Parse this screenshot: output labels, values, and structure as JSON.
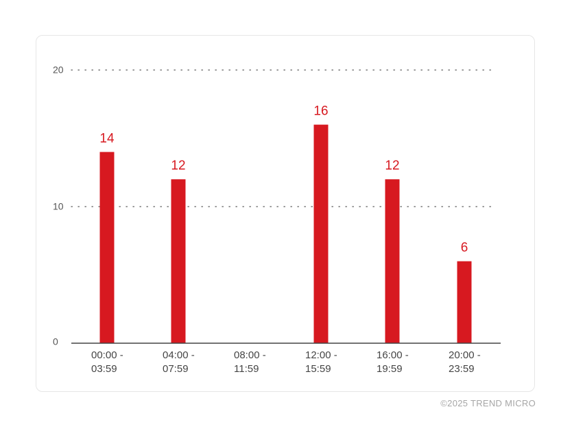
{
  "chart_data": {
    "type": "bar",
    "categories": [
      [
        "00:00 -",
        "03:59"
      ],
      [
        "04:00 -",
        "07:59"
      ],
      [
        "08:00 -",
        "11:59"
      ],
      [
        "12:00 -",
        "15:59"
      ],
      [
        "16:00 -",
        "19:59"
      ],
      [
        "20:00 -",
        "23:59"
      ]
    ],
    "values": [
      14,
      12,
      null,
      16,
      12,
      6
    ],
    "ylim": [
      0,
      20
    ],
    "yticks": [
      0,
      10,
      20
    ],
    "grid": "dotted horizontal",
    "bar_color": "#d71920",
    "label_color": "#d71920",
    "title": "",
    "xlabel": "",
    "ylabel": ""
  },
  "footer": {
    "copyright": "©2025 TREND MICRO"
  }
}
